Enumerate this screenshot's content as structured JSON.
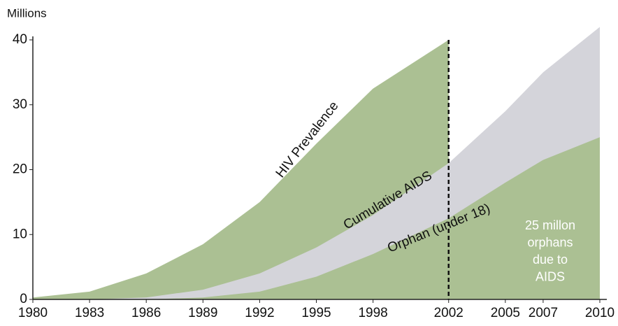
{
  "chart_data": {
    "type": "area",
    "y_label": "Millions",
    "x": [
      1980,
      1983,
      1986,
      1989,
      1992,
      1995,
      1998,
      2002,
      2005,
      2007,
      2010
    ],
    "xlim": [
      1980,
      2010
    ],
    "xticks": [
      1980,
      1983,
      1986,
      1989,
      1992,
      1995,
      1998,
      2002,
      2005,
      2007,
      2010
    ],
    "ylim": [
      0,
      40
    ],
    "yticks": [
      0,
      10,
      20,
      30,
      40
    ],
    "series": [
      {
        "name": "HIV Prevalence",
        "color": "#abc093",
        "values": [
          0.3,
          1.2,
          4,
          8.5,
          15,
          24,
          32.5,
          40,
          null,
          null,
          null
        ]
      },
      {
        "name": "Cumulative AIDS",
        "color": "#d4d4da",
        "values": [
          0,
          0,
          0.3,
          1.5,
          4,
          8,
          13,
          21,
          29,
          35,
          42
        ]
      },
      {
        "name": "Orphan (under 18)",
        "color": "#abc093",
        "values": [
          0,
          0,
          0,
          0.3,
          1.2,
          3.5,
          7,
          12.5,
          18,
          21.5,
          25
        ]
      }
    ],
    "vline": 2002,
    "note": [
      "25 millon",
      "orphans",
      "due to",
      "AIDS"
    ]
  }
}
